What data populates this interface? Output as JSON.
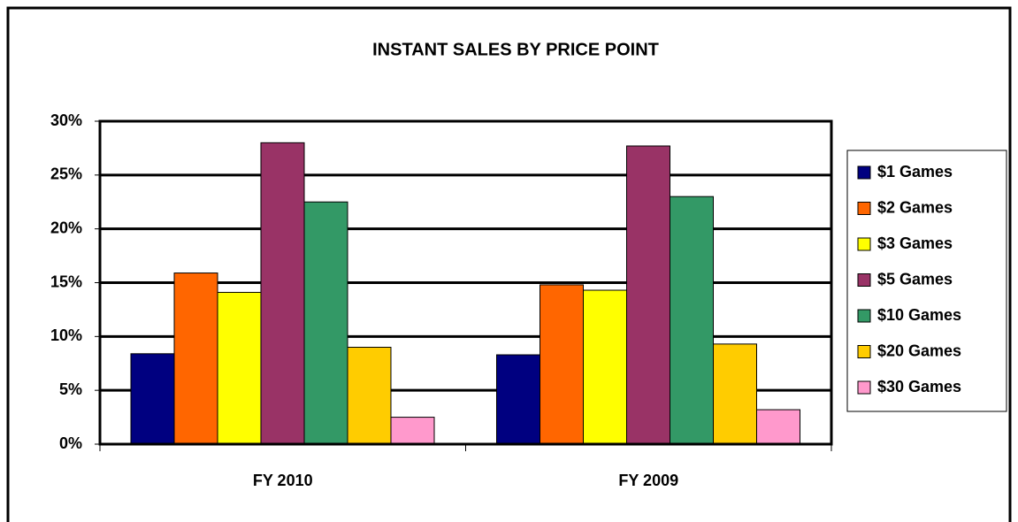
{
  "chart_data": {
    "type": "bar",
    "title": "INSTANT SALES BY PRICE POINT",
    "categories": [
      "FY 2010",
      "FY 2009"
    ],
    "series": [
      {
        "name": "$1 Games",
        "color": "#000080",
        "values": [
          8.4,
          8.3
        ]
      },
      {
        "name": "$2 Games",
        "color": "#ff6600",
        "values": [
          15.9,
          14.8
        ]
      },
      {
        "name": "$3 Games",
        "color": "#ffff00",
        "values": [
          14.1,
          14.3
        ]
      },
      {
        "name": "$5 Games",
        "color": "#993366",
        "values": [
          28.0,
          27.7
        ]
      },
      {
        "name": "$10 Games",
        "color": "#339966",
        "values": [
          22.5,
          23.0
        ]
      },
      {
        "name": "$20 Games",
        "color": "#ffcc00",
        "values": [
          9.0,
          9.3
        ]
      },
      {
        "name": "$30 Games",
        "color": "#ff99cc",
        "values": [
          2.5,
          3.2
        ]
      }
    ],
    "ylim": [
      0,
      30
    ],
    "yticks": [
      {
        "value": 0,
        "label": "0%"
      },
      {
        "value": 5,
        "label": "5%"
      },
      {
        "value": 10,
        "label": "10%"
      },
      {
        "value": 15,
        "label": "15%"
      },
      {
        "value": 20,
        "label": "20%"
      },
      {
        "value": 25,
        "label": "25%"
      },
      {
        "value": 30,
        "label": "30%"
      }
    ],
    "grid": true,
    "legend": "right"
  }
}
